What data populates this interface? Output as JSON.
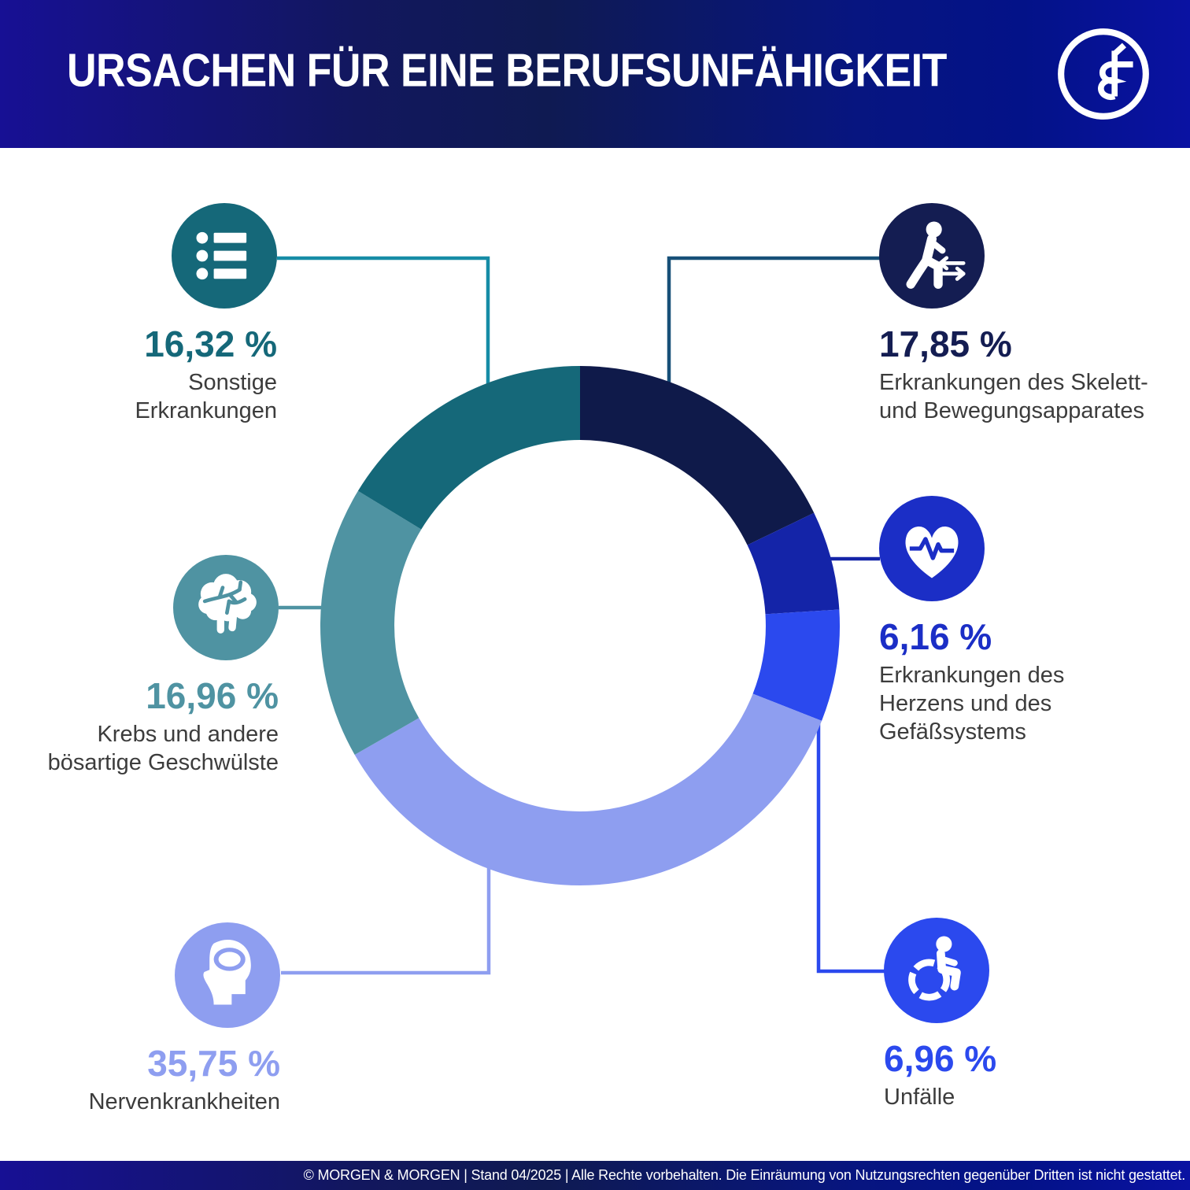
{
  "header": {
    "title": "URSACHEN FÜR EINE BERUFSUNFÄHIGKEIT",
    "logo_name": "morgen-und-morgen-logo"
  },
  "chart_data": {
    "type": "pie",
    "subtype": "donut",
    "title": "Ursachen für eine Berufsunfähigkeit",
    "unit": "%",
    "direction": "clockwise",
    "start_angle_deg": 0,
    "inner_radius_ratio": 0.715,
    "segments": [
      {
        "label": "Erkrankungen des Skelett- und Bewegungsapparates",
        "label_lines": [
          "Erkrankungen des Skelett-",
          "und Bewegungsapparates"
        ],
        "value": 17.85,
        "display": "17,85 %",
        "color": "#0F1A4A",
        "accent": "#141D52",
        "connector_color": "#175078",
        "icon": "walking-person-icon"
      },
      {
        "label": "Erkrankungen des Herzens und des Gefäßsystems",
        "label_lines": [
          "Erkrankungen des",
          "Herzens und des",
          "Gefäßsystems"
        ],
        "value": 6.16,
        "display": "6,16 %",
        "color": "#1424A8",
        "accent": "#1B2EC6",
        "connector_color": "#1424A8",
        "icon": "heart-pulse-icon"
      },
      {
        "label": "Unfälle",
        "label_lines": [
          "Unfälle"
        ],
        "value": 6.96,
        "display": "6,96 %",
        "color": "#2B49EE",
        "accent": "#2B49EE",
        "connector_color": "#2B49EE",
        "icon": "wheelchair-icon"
      },
      {
        "label": "Nervenkrankheiten",
        "label_lines": [
          "Nervenkrankheiten"
        ],
        "value": 35.75,
        "display": "35,75 %",
        "color": "#8E9EF0",
        "accent": "#8E9EF0",
        "connector_color": "#8E9EF0",
        "icon": "head-brain-icon"
      },
      {
        "label": "Krebs und andere bösartige Geschwülste",
        "label_lines": [
          "Krebs und andere",
          "bösartige Geschwülste"
        ],
        "value": 16.96,
        "display": "16,96 %",
        "color": "#4F93A2",
        "accent": "#4F93A2",
        "connector_color": "#4F93A2",
        "icon": "brain-icon"
      },
      {
        "label": "Sonstige Erkrankungen",
        "label_lines": [
          "Sonstige",
          "Erkrankungen"
        ],
        "value": 16.32,
        "display": "16,32 %",
        "color": "#156879",
        "accent": "#156879",
        "connector_color": "#168CA6",
        "icon": "list-icon"
      }
    ]
  },
  "footer": {
    "text": "© MORGEN & MORGEN | Stand 04/2025 | Alle Rechte vorbehalten. Die Einräumung von Nutzungsrechten gegenüber Dritten ist nicht gestattet."
  },
  "palette": {
    "label_text": "#3C3C3C",
    "background": "#FFFFFF",
    "header_gradient": [
      "#171094",
      "#0F1A52",
      "#031288",
      "#0A12A2"
    ]
  }
}
